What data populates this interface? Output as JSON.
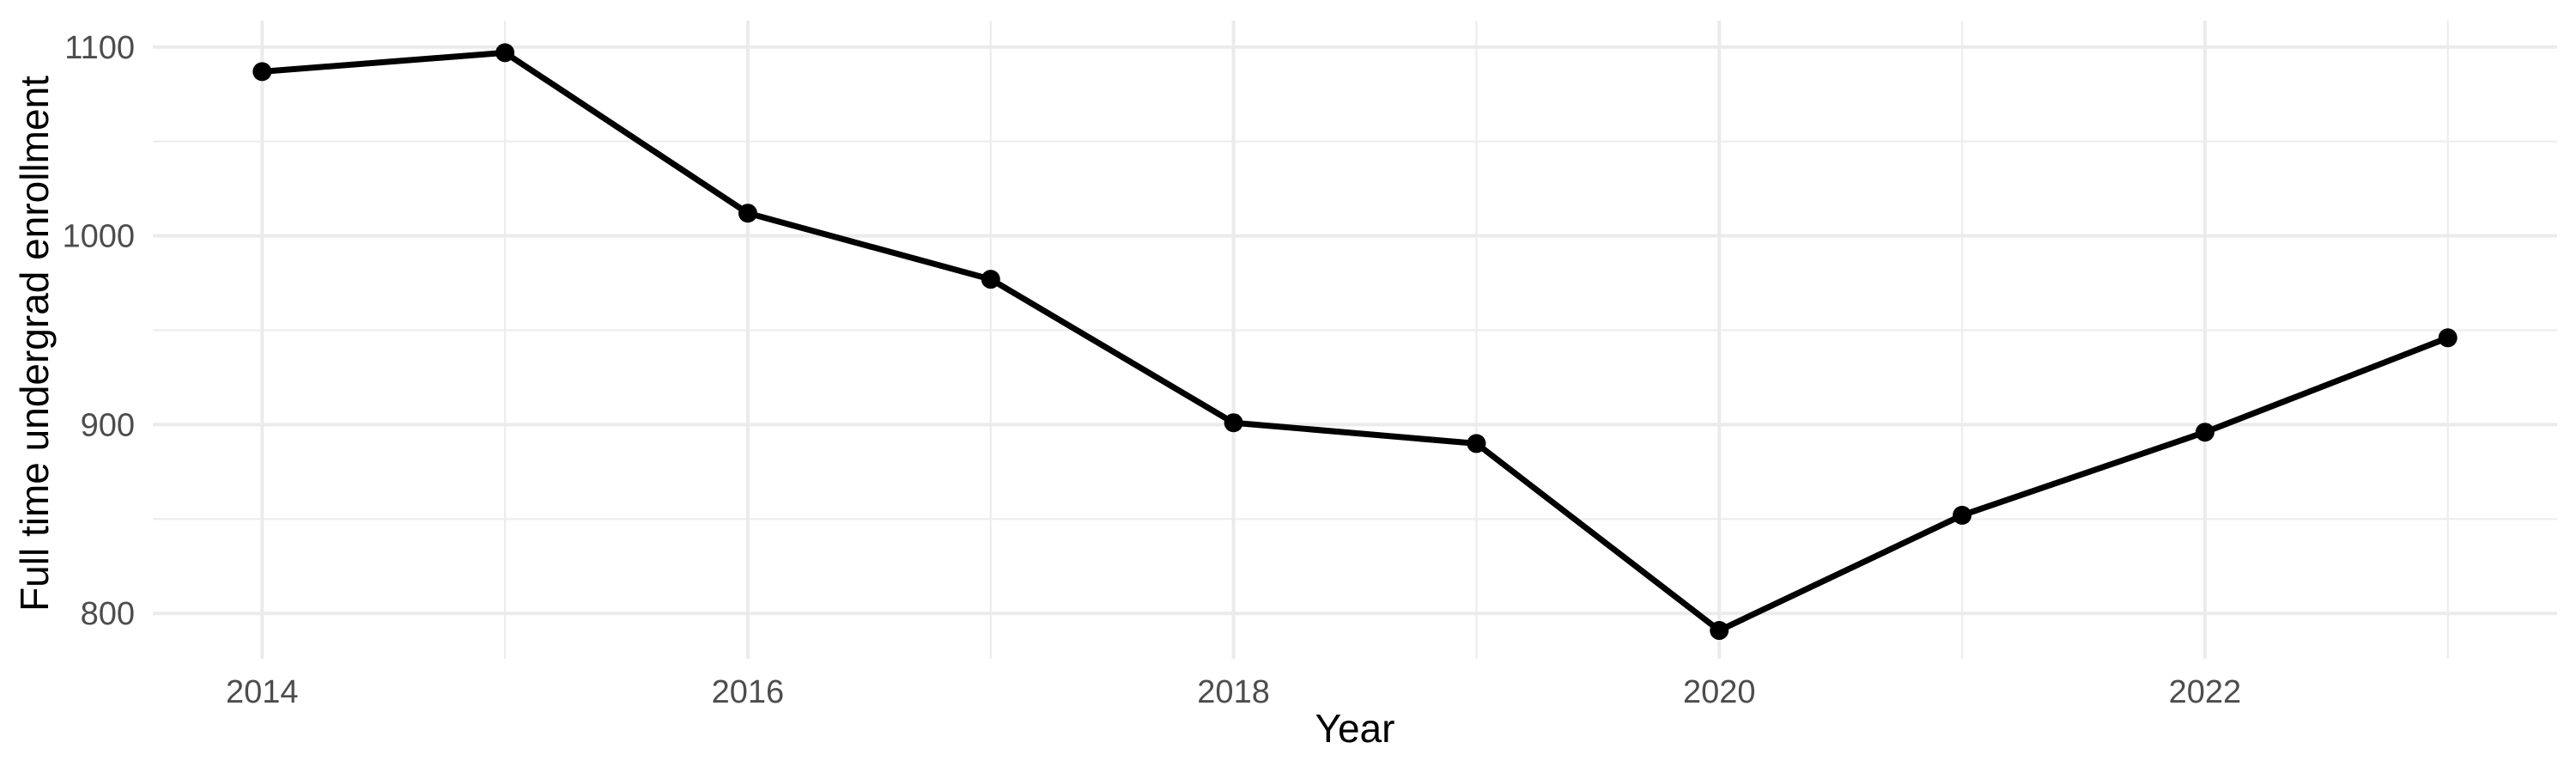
{
  "figure": {
    "background_color": "#FFFFFF"
  },
  "chart_data": {
    "type": "line",
    "title": "",
    "xlabel": "Year",
    "ylabel": "Full time undergrad enrollment",
    "x": [
      2014,
      2015,
      2016,
      2017,
      2018,
      2019,
      2020,
      2021,
      2022,
      2023
    ],
    "values": [
      1087,
      1097,
      1012,
      977,
      901,
      890,
      791,
      852,
      896,
      946
    ],
    "series_name": "Full time undergrad enrollment",
    "x_major_ticks": [
      2014,
      2016,
      2018,
      2020,
      2022
    ],
    "x_minor_gridlines": [
      2015,
      2017,
      2019,
      2021,
      2023
    ],
    "y_major_ticks": [
      800,
      900,
      1000,
      1100
    ],
    "y_minor_gridlines": [
      850,
      950,
      1050
    ],
    "xlim": [
      2013.55,
      2023.45
    ],
    "ylim": [
      776,
      1114
    ],
    "grid": true,
    "legend": "none",
    "marker": "filled-circle",
    "colors": {
      "line": "#000000",
      "point": "#000000",
      "grid_major": "#EBEBEB",
      "grid_minor": "#EDEDED",
      "tick_text": "#4D4D4D",
      "axis_title_text": "#000000",
      "background": "#FFFFFF"
    }
  }
}
